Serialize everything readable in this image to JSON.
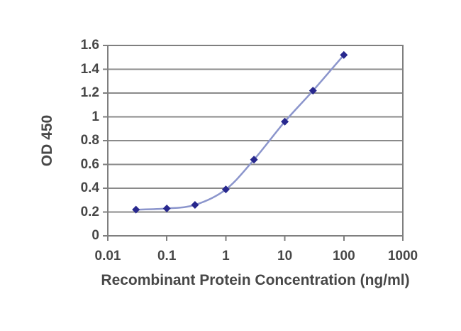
{
  "chart_data": {
    "type": "line",
    "title": "",
    "xlabel": "Recombinant Protein Concentration (ng/ml)",
    "ylabel": "OD 450",
    "x_scale": "log10",
    "xlim": [
      0.01,
      1000
    ],
    "ylim": [
      0,
      1.6
    ],
    "x_tick_values": [
      0.01,
      0.1,
      1,
      10,
      100,
      1000
    ],
    "x_tick_labels": [
      "0.01",
      "0.1",
      "1",
      "10",
      "100",
      "1000"
    ],
    "y_tick_values": [
      0,
      0.2,
      0.4,
      0.6,
      0.8,
      1.0,
      1.2,
      1.4,
      1.6
    ],
    "y_tick_labels": [
      "0",
      "0.2",
      "0.4",
      "0.6",
      "0.8",
      "1",
      "1.2",
      "1.4",
      "1.6"
    ],
    "grid": "horizontal-major-only",
    "legend": "none",
    "series": [
      {
        "name": "OD 450",
        "marker": "diamond",
        "smooth": true,
        "x": [
          0.03,
          0.1,
          0.3,
          1,
          3,
          10,
          30,
          100
        ],
        "y": [
          0.22,
          0.23,
          0.26,
          0.39,
          0.64,
          0.96,
          1.22,
          1.52
        ]
      }
    ]
  },
  "colors": {
    "background": "#ffffff",
    "plot_border": "#7f7f7f",
    "gridline": "#8a8a8a",
    "tick_mark": "#7f7f7f",
    "axis_text": "#474747",
    "series_line": "#8b95cc",
    "series_marker": "#28288e"
  }
}
